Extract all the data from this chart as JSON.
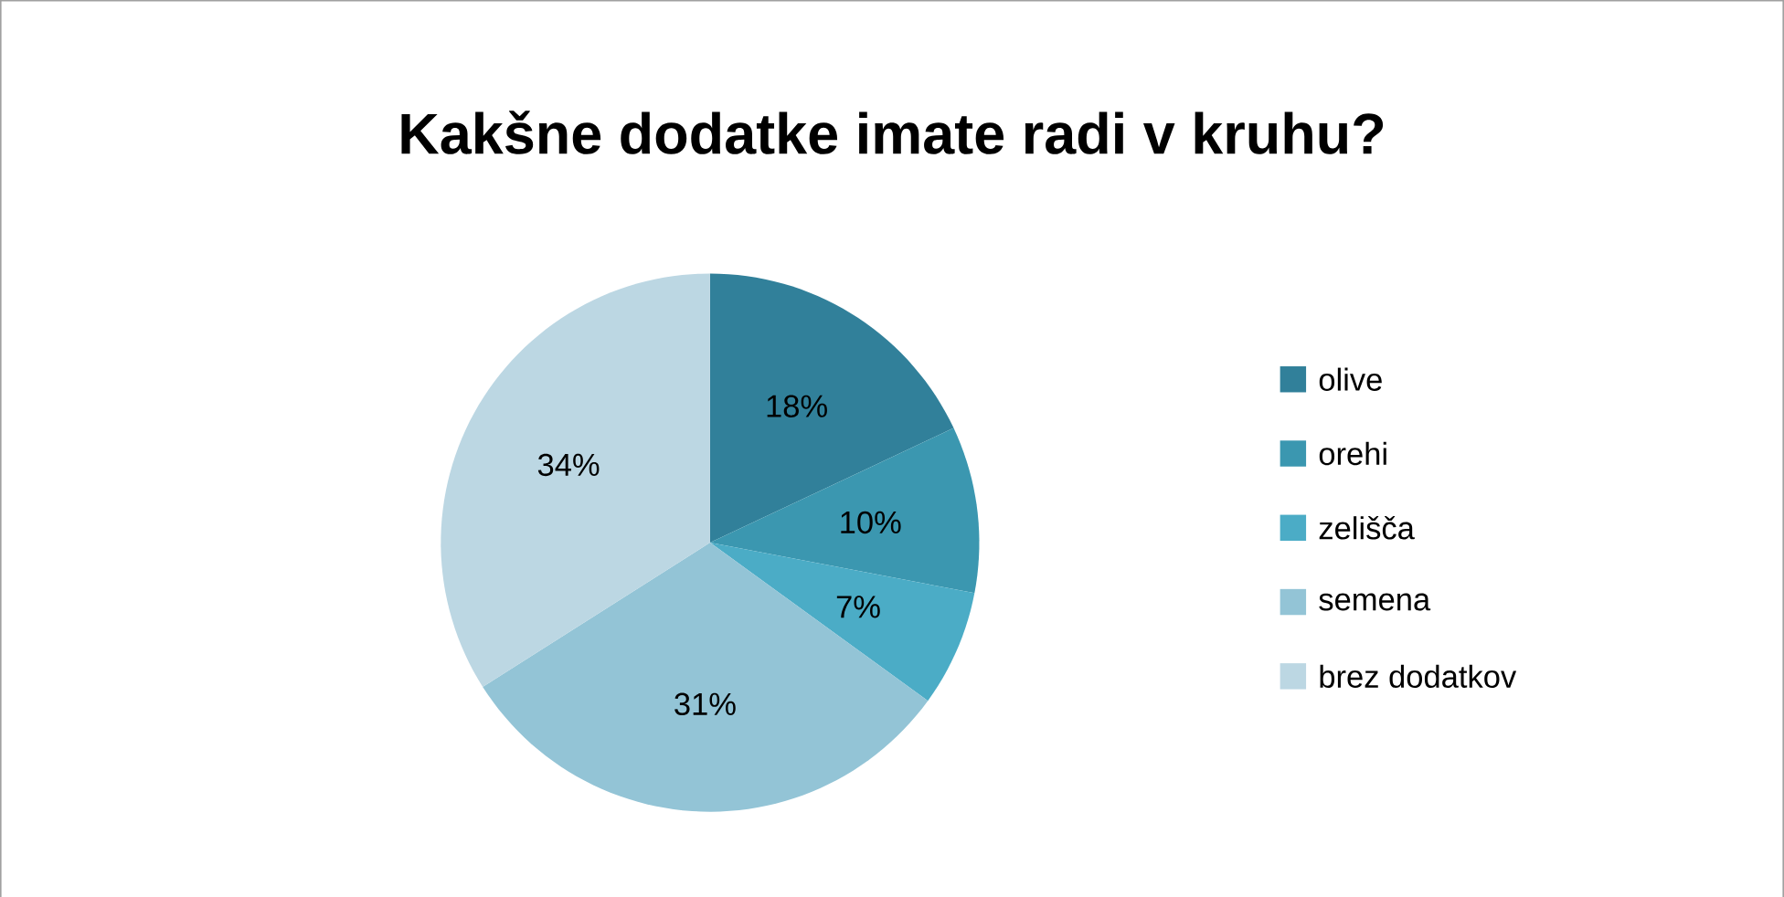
{
  "chart_data": {
    "type": "pie",
    "title": "Kakšne dodatke imate radi v kruhu?",
    "categories": [
      "olive",
      "orehi",
      "zelišča",
      "semena",
      "brez dodatkov"
    ],
    "values": [
      18,
      10,
      7,
      31,
      34
    ],
    "value_labels": [
      "18%",
      "10%",
      "7%",
      "31%",
      "34%"
    ],
    "colors": [
      "#31809a",
      "#3b97b0",
      "#4bacc6",
      "#93c4d6",
      "#bcd7e3"
    ],
    "legend": "right"
  }
}
